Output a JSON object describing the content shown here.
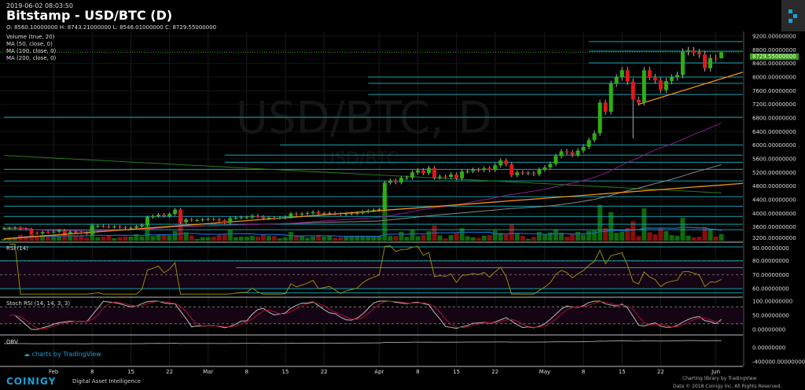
{
  "header": {
    "datetime": "2019-06-02 08:03:50",
    "title": "Bitstamp - USD/BTC (D)",
    "ohlc": "O: 8560.10000000 H: 8743.21000000 L: 8546.01000000 C: 8729.55000000"
  },
  "legends": [
    "Volume (true, 20)",
    "MA (50, close, 0)",
    "MA (100, close, 0)",
    "MA (200, close, 0)"
  ],
  "watermark": {
    "main": "USD/BTC, D",
    "sub": "USD/BTC"
  },
  "panels": {
    "rsi_label": "RSI (14)",
    "stoch_label": "Stoch RSI (14, 14, 3, 3)",
    "obv_label": "OBV"
  },
  "footer": {
    "brand": "COINIGY",
    "tagline": "Digital Asset Intelligence",
    "tv_credit": "charts by TradingView",
    "charting_by": "Charting library by  TradingView",
    "copyright": "Data © 2018 Coinigy Inc. All Rights Reserved."
  },
  "colors": {
    "up": "#2fae12",
    "down": "#e01818",
    "level": "#17a2b0",
    "trend": "#f0901a",
    "ma50": "#8a1a8a",
    "ma100": "#888888",
    "ma200": "#2a7a1a",
    "rsi": "#9a8a10",
    "stoch_k": "#bbbbbb",
    "stoch_d": "#b01030",
    "obv": "#999999"
  },
  "chart_data": {
    "type": "candlestick",
    "title": "Bitstamp - USD/BTC (D)",
    "start_date": "2019-01-23",
    "closes": [
      3560,
      3570,
      3580,
      3540,
      3530,
      3430,
      3410,
      3450,
      3440,
      3460,
      3500,
      3420,
      3460,
      3440,
      3420,
      3400,
      3620,
      3630,
      3620,
      3600,
      3610,
      3590,
      3570,
      3580,
      3620,
      3660,
      3890,
      3920,
      3960,
      3920,
      3980,
      4110,
      3740,
      3820,
      3800,
      3800,
      3820,
      3830,
      3820,
      3790,
      3720,
      3860,
      3870,
      3880,
      3880,
      3930,
      3900,
      3850,
      3870,
      3860,
      3870,
      3890,
      3990,
      3970,
      3990,
      4010,
      4040,
      3990,
      4000,
      4010,
      3990,
      3970,
      3990,
      4000,
      4010,
      4050,
      4080,
      4100,
      4120,
      4900,
      4960,
      4910,
      5040,
      5050,
      5200,
      5260,
      5180,
      5330,
      5050,
      5080,
      5070,
      5140,
      5030,
      5230,
      5240,
      5280,
      5270,
      5320,
      5270,
      5410,
      5550,
      5440,
      5120,
      5200,
      5180,
      5180,
      5150,
      5280,
      5350,
      5450,
      5680,
      5820,
      5790,
      5720,
      5840,
      5950,
      6150,
      6350,
      7250,
      6980,
      7800,
      7990,
      8200,
      7870,
      7340,
      7250,
      8200,
      8000,
      7900,
      7620,
      7880,
      7990,
      8060,
      8740,
      8780,
      8720,
      8660,
      8260,
      8560,
      8550,
      8730
    ],
    "low_overrides": {
      "114": 6200
    },
    "last": {
      "open": 8560.1,
      "high": 8743.21,
      "low": 8546.01,
      "close": 8729.55,
      "label": "8729.55000000"
    },
    "price_ticks": [
      "9200.00000000",
      "8800.00000000",
      "8400.00000000",
      "8000.00000000",
      "7600.00000000",
      "7200.00000000",
      "6800.00000000",
      "6400.00000000",
      "6000.00000000",
      "5600.00000000",
      "5200.00000000",
      "4800.00000000",
      "4400.00000000",
      "4000.00000000",
      "3600.00000000",
      "3200.00000000"
    ],
    "price_range": [
      3200,
      9200
    ],
    "levels": [
      {
        "p": 9040,
        "from": 106
      },
      {
        "p": 8760,
        "from": 106
      },
      {
        "p": 8415,
        "from": 106
      },
      {
        "p": 8000,
        "from": 66
      },
      {
        "p": 7815,
        "from": 66
      },
      {
        "p": 7490,
        "from": 66
      },
      {
        "p": 6820,
        "from": 0
      },
      {
        "p": 6010,
        "from": 50
      },
      {
        "p": 5710,
        "from": 40
      },
      {
        "p": 5500,
        "from": 40
      },
      {
        "p": 5290,
        "from": 0
      },
      {
        "p": 4950,
        "from": 0
      },
      {
        "p": 4490,
        "from": 0
      },
      {
        "p": 4210,
        "from": 0
      },
      {
        "p": 3910,
        "from": 0
      },
      {
        "p": 3680,
        "from": 0
      },
      {
        "p": 3520,
        "from": 0
      }
    ],
    "trendlines": [
      {
        "d1": 0,
        "p1": 3250,
        "d2": 143,
        "p2": 4990
      },
      {
        "d1": 115,
        "p1": 7200,
        "d2": 143,
        "p2": 8600
      }
    ],
    "ma200_line": {
      "d1": 0,
      "p1": 5700,
      "d2": 130,
      "p2": 4600
    },
    "rsi_ticks": [
      "90.00000000",
      "80.00000000",
      "70.00000000",
      "60.00000000"
    ],
    "rsi_levels": [
      90,
      80,
      75,
      60,
      57
    ],
    "stoch_ticks": [
      "100.00000000",
      "50.00000000",
      "0.00000000"
    ],
    "obv_ticks": [
      "0.00000000",
      "-400000.00000000"
    ],
    "date_ticks": [
      {
        "d": 9,
        "t": "Feb"
      },
      {
        "d": 16,
        "t": "8"
      },
      {
        "d": 23,
        "t": "15"
      },
      {
        "d": 30,
        "t": "22"
      },
      {
        "d": 37,
        "t": "Mar"
      },
      {
        "d": 44,
        "t": "8"
      },
      {
        "d": 51,
        "t": "15"
      },
      {
        "d": 58,
        "t": "22"
      },
      {
        "d": 68,
        "t": "Apr"
      },
      {
        "d": 75,
        "t": "8"
      },
      {
        "d": 82,
        "t": "15"
      },
      {
        "d": 89,
        "t": "22"
      },
      {
        "d": 98,
        "t": "May"
      },
      {
        "d": 105,
        "t": "8"
      },
      {
        "d": 112,
        "t": "15"
      },
      {
        "d": 119,
        "t": "22"
      },
      {
        "d": 129,
        "t": "Jun"
      }
    ]
  }
}
